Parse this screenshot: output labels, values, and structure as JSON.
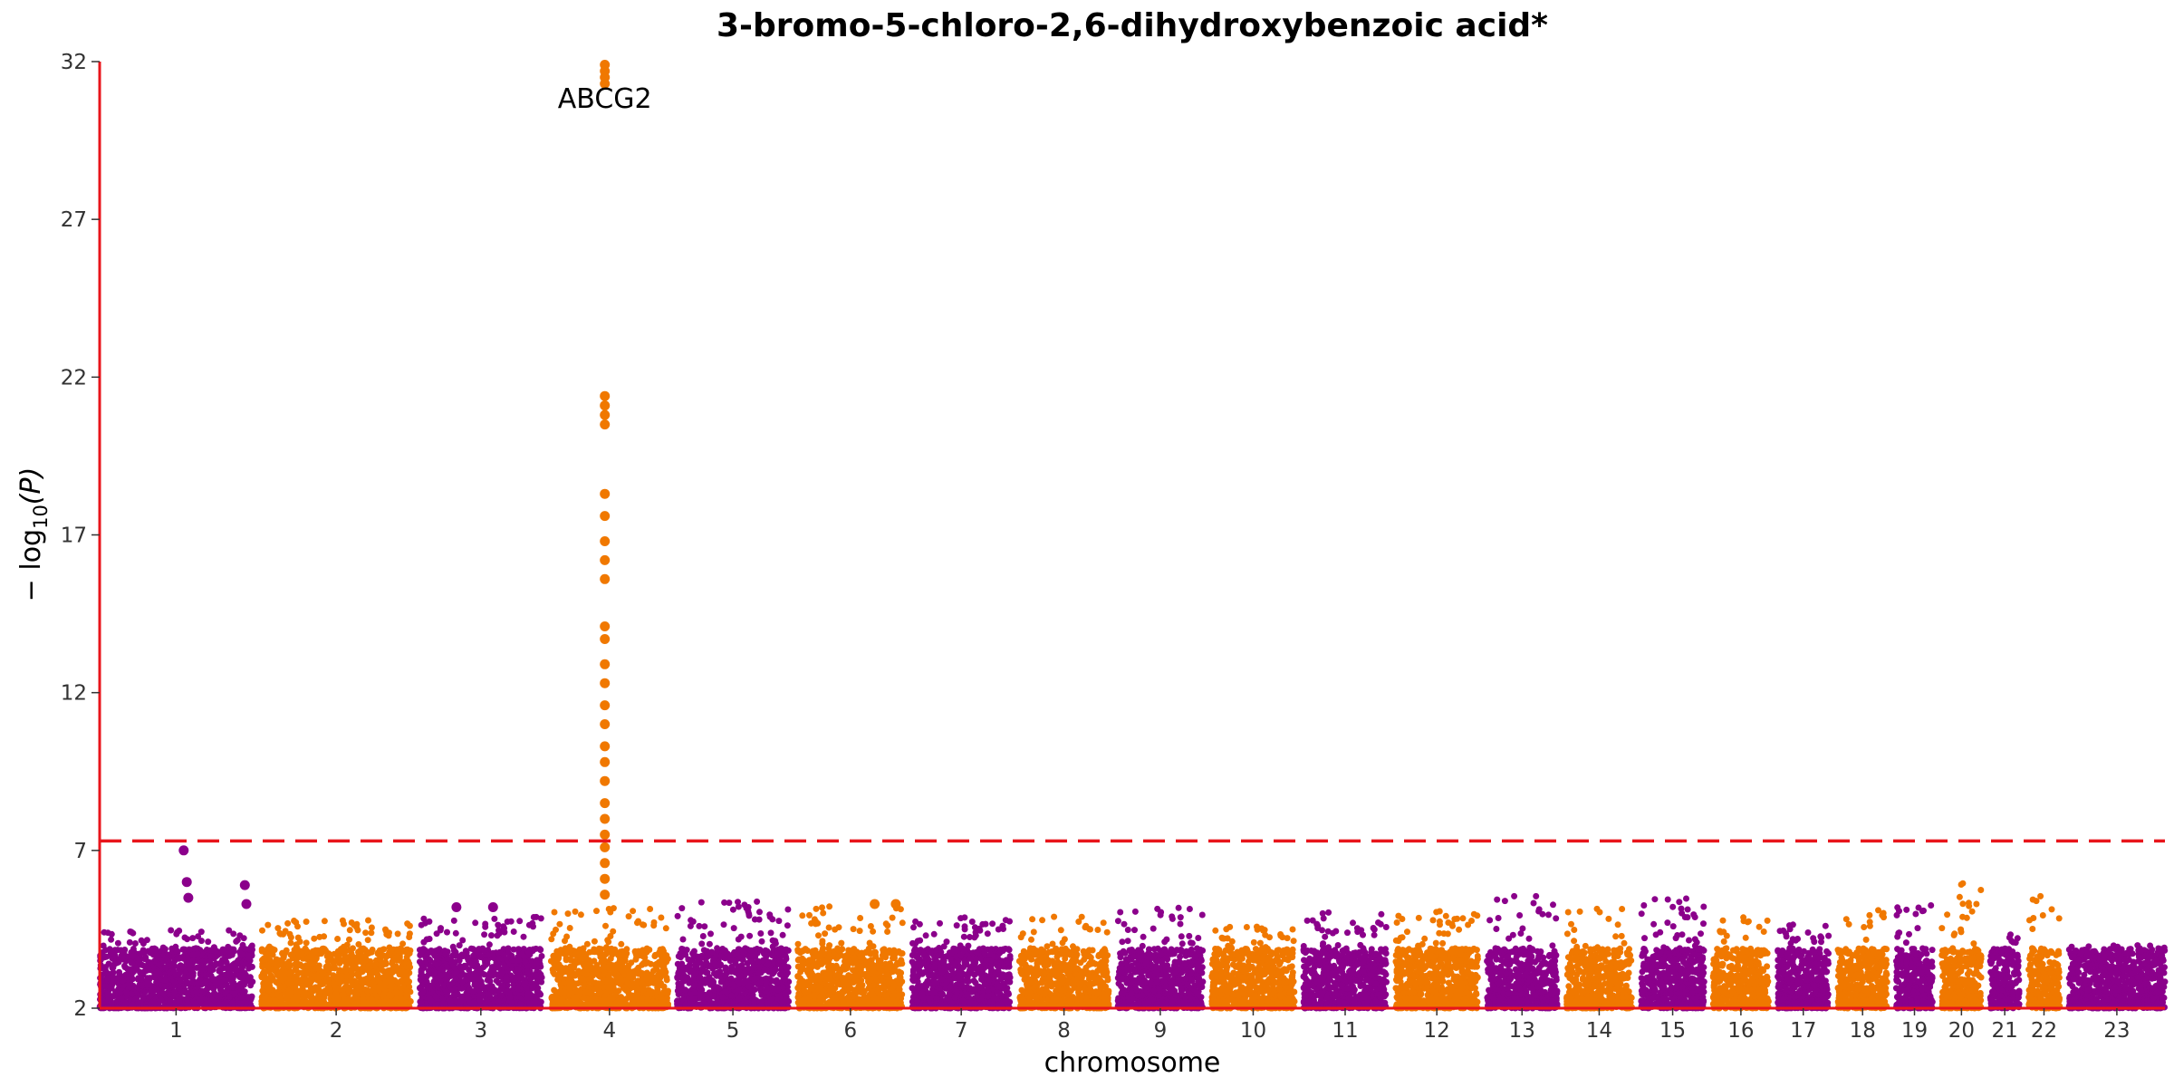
{
  "chart_data": {
    "type": "scatter",
    "subtype": "manhattan",
    "title": "3-bromo-5-chloro-2,6-dihydroxybenzoic acid*",
    "xlabel": "chromosome",
    "ylabel": "−log10(P)",
    "ylabel_parts": {
      "pre": "− log",
      "sub": "10",
      "post": "(P)"
    },
    "ylim": [
      2,
      32
    ],
    "yticks": [
      2,
      7,
      12,
      17,
      22,
      27,
      32
    ],
    "significance_line": 7.3,
    "colors": {
      "odd": "#8B008B",
      "even": "#F07800",
      "axis": "#E8151B",
      "threshold": "#E8151B"
    },
    "chromosomes": [
      {
        "label": "1",
        "length": 248,
        "peak": 4.5,
        "hits": [
          [
            0.55,
            7.0
          ],
          [
            0.57,
            6.0
          ],
          [
            0.58,
            5.5
          ],
          [
            0.95,
            5.9
          ],
          [
            0.96,
            5.3
          ]
        ]
      },
      {
        "label": "2",
        "length": 242,
        "peak": 4.8,
        "hits": []
      },
      {
        "label": "3",
        "length": 198,
        "peak": 5.0,
        "hits": [
          [
            0.3,
            5.2
          ],
          [
            0.6,
            5.2
          ]
        ]
      },
      {
        "label": "4",
        "length": 190,
        "peak": 5.2,
        "hits": [
          [
            0.46,
            31.9
          ],
          [
            0.46,
            31.7
          ],
          [
            0.46,
            31.5
          ],
          [
            0.46,
            31.3
          ],
          [
            0.46,
            21.4
          ],
          [
            0.46,
            21.1
          ],
          [
            0.46,
            20.8
          ],
          [
            0.46,
            20.5
          ],
          [
            0.46,
            18.3
          ],
          [
            0.46,
            17.6
          ],
          [
            0.46,
            16.8
          ],
          [
            0.46,
            16.2
          ],
          [
            0.46,
            15.6
          ],
          [
            0.46,
            14.1
          ],
          [
            0.46,
            13.7
          ],
          [
            0.46,
            12.9
          ],
          [
            0.46,
            12.3
          ],
          [
            0.46,
            11.6
          ],
          [
            0.46,
            11.0
          ],
          [
            0.46,
            10.3
          ],
          [
            0.46,
            9.8
          ],
          [
            0.46,
            9.2
          ],
          [
            0.46,
            8.5
          ],
          [
            0.46,
            8.0
          ],
          [
            0.46,
            7.5
          ],
          [
            0.46,
            7.1
          ],
          [
            0.46,
            6.6
          ],
          [
            0.46,
            6.1
          ],
          [
            0.46,
            5.6
          ]
        ]
      },
      {
        "label": "5",
        "length": 181,
        "peak": 5.4,
        "hits": []
      },
      {
        "label": "6",
        "length": 171,
        "peak": 5.3,
        "hits": [
          [
            0.73,
            5.3
          ],
          [
            0.93,
            5.3
          ]
        ]
      },
      {
        "label": "7",
        "length": 159,
        "peak": 4.9,
        "hits": []
      },
      {
        "label": "8",
        "length": 145,
        "peak": 5.0,
        "hits": []
      },
      {
        "label": "9",
        "length": 138,
        "peak": 5.2,
        "hits": []
      },
      {
        "label": "10",
        "length": 134,
        "peak": 4.6,
        "hits": []
      },
      {
        "label": "11",
        "length": 135,
        "peak": 5.1,
        "hits": []
      },
      {
        "label": "12",
        "length": 133,
        "peak": 5.1,
        "hits": []
      },
      {
        "label": "13",
        "length": 114,
        "peak": 5.7,
        "hits": []
      },
      {
        "label": "14",
        "length": 107,
        "peak": 5.2,
        "hits": []
      },
      {
        "label": "15",
        "length": 102,
        "peak": 5.5,
        "hits": []
      },
      {
        "label": "16",
        "length": 90,
        "peak": 4.9,
        "hits": []
      },
      {
        "label": "17",
        "length": 83,
        "peak": 4.7,
        "hits": []
      },
      {
        "label": "18",
        "length": 80,
        "peak": 5.4,
        "hits": []
      },
      {
        "label": "19",
        "length": 59,
        "peak": 5.4,
        "hits": []
      },
      {
        "label": "20",
        "length": 64,
        "peak": 6.0,
        "hits": []
      },
      {
        "label": "21",
        "length": 47,
        "peak": 4.4,
        "hits": []
      },
      {
        "label": "22",
        "length": 51,
        "peak": 5.7,
        "hits": []
      },
      {
        "label": "23",
        "length": 156,
        "peak": 4.0,
        "hits": []
      }
    ],
    "annotations": [
      {
        "text": "ABCG2",
        "chromosome": "4",
        "pos": 0.46,
        "y": 31.8
      }
    ]
  }
}
